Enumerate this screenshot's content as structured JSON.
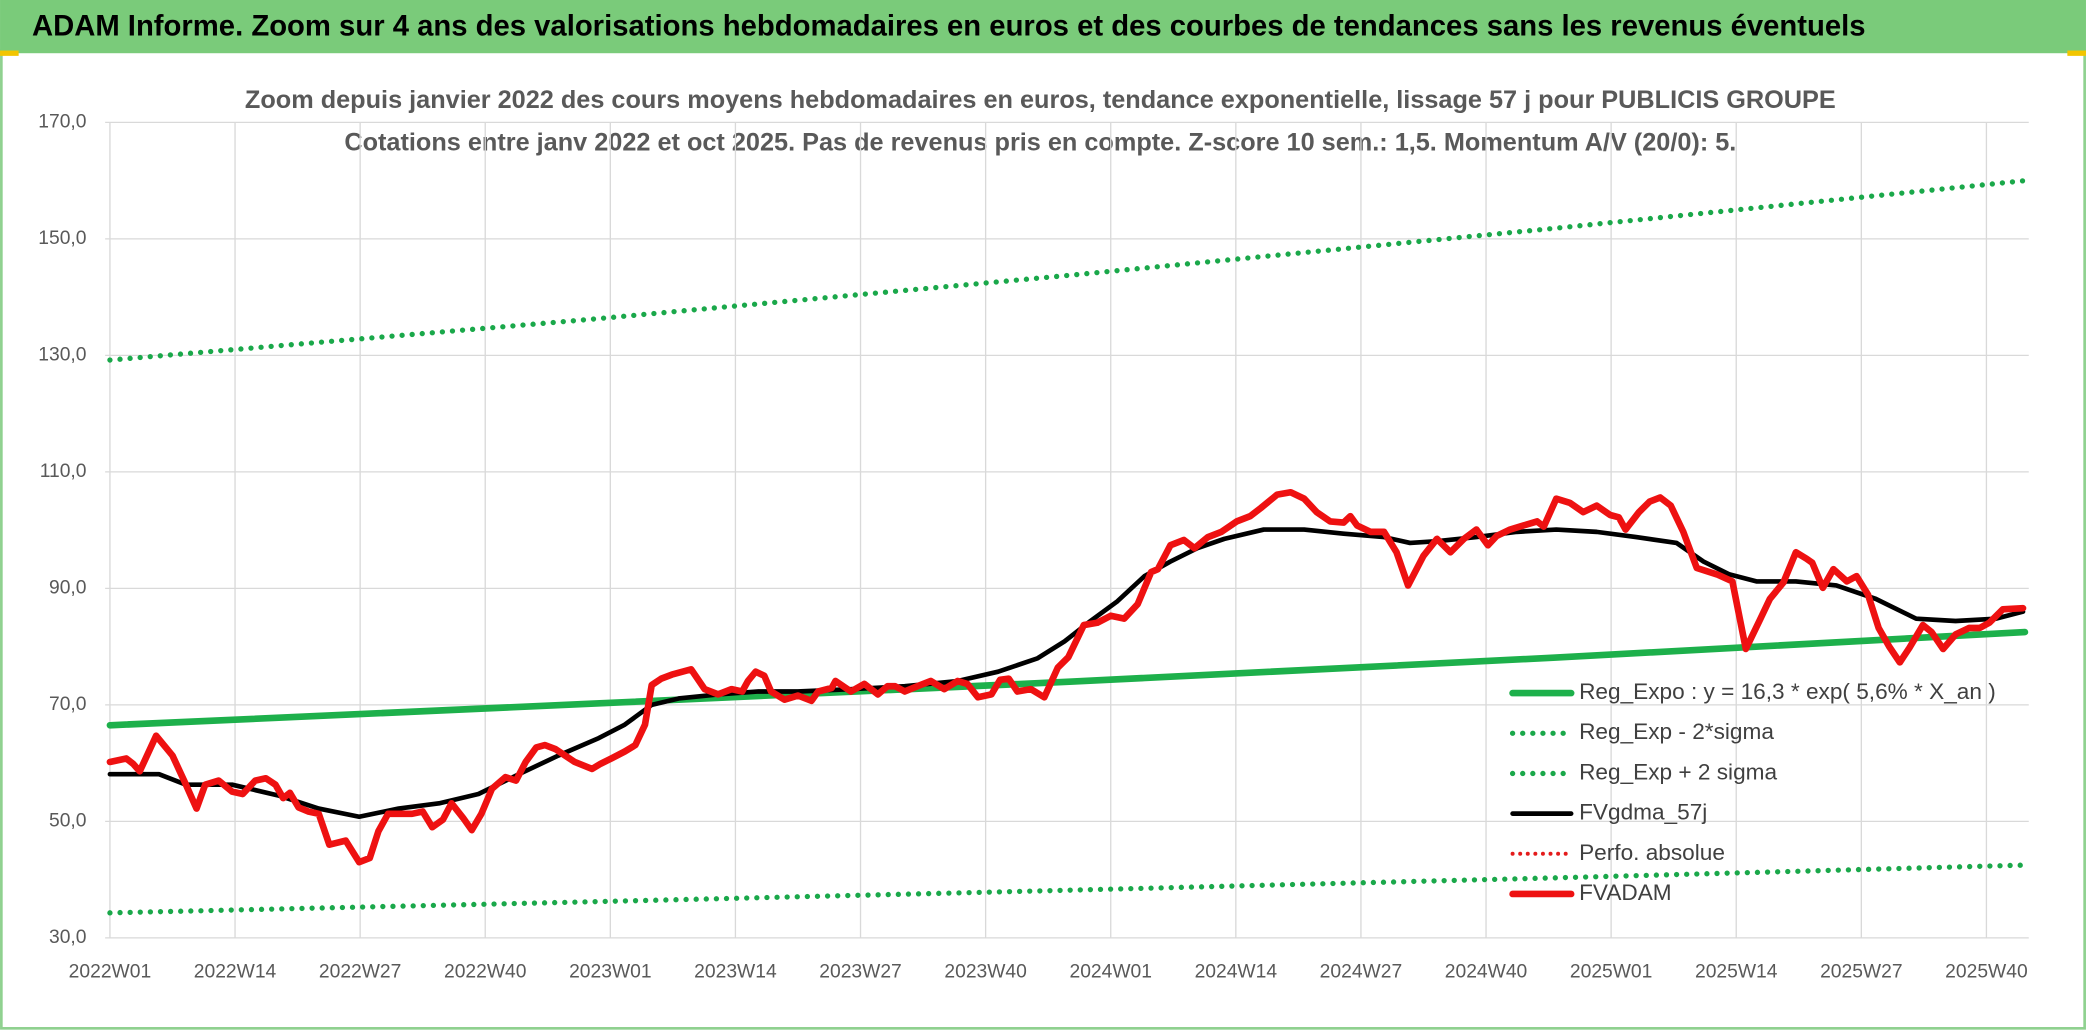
{
  "header": {
    "title": "ADAM Informe. Zoom sur 4 ans des valorisations hebdomadaires en euros et des courbes de tendances sans les revenus éventuels"
  },
  "chart_data": {
    "type": "line",
    "title": "Zoom depuis janvier 2022 des cours moyens hebdomadaires en euros, tendance exponentielle, lissage 57 j pour PUBLICIS GROUPE",
    "subtitle": "Cotations entre janv 2022 et oct 2025. Pas de revenus pris en compte. Z-score 10 sem.: 1,5. Momentum A/V (20/0): 5.",
    "xlim": [
      -0.5,
      199.4
    ],
    "xticks": [
      {
        "value": 0,
        "label": "2022W01"
      },
      {
        "value": 13,
        "label": "2022W14"
      },
      {
        "value": 26,
        "label": "2022W27"
      },
      {
        "value": 39,
        "label": "2022W40"
      },
      {
        "value": 52,
        "label": "2023W01"
      },
      {
        "value": 65,
        "label": "2023W14"
      },
      {
        "value": 78,
        "label": "2023W27"
      },
      {
        "value": 91,
        "label": "2023W40"
      },
      {
        "value": 104,
        "label": "2024W01"
      },
      {
        "value": 117,
        "label": "2024W14"
      },
      {
        "value": 130,
        "label": "2024W27"
      },
      {
        "value": 143,
        "label": "2024W40"
      },
      {
        "value": 156,
        "label": "2025W01"
      },
      {
        "value": 169,
        "label": "2025W14"
      },
      {
        "value": 182,
        "label": "2025W27"
      },
      {
        "value": 195,
        "label": "2025W40"
      }
    ],
    "ylim": [
      30,
      170
    ],
    "yticks": [
      {
        "value": 30,
        "label": "30,0"
      },
      {
        "value": 50,
        "label": "50,0"
      },
      {
        "value": 70,
        "label": "70,0"
      },
      {
        "value": 90,
        "label": "90,0"
      },
      {
        "value": 110,
        "label": "110,0"
      },
      {
        "value": 130,
        "label": "130,0"
      },
      {
        "value": 150,
        "label": "150,0"
      },
      {
        "value": 170,
        "label": "170,0"
      }
    ],
    "grid": true,
    "legend": "bottom-right",
    "series": [
      {
        "name": "Reg_Expo : y = 16,3 * exp( 5,6% *  X_an )",
        "color": "#1db04b",
        "style": "solid",
        "width": 5,
        "x": [
          0,
          50,
          100,
          150,
          199
        ],
        "values": [
          66.5,
          70.2,
          74.0,
          78.1,
          82.5
        ]
      },
      {
        "name": "Reg_Exp - 2*sigma",
        "color": "#1aa84a",
        "style": "dotted",
        "width": 4,
        "x": [
          0,
          50,
          100,
          150,
          199
        ],
        "values": [
          34.3,
          36.2,
          38.2,
          40.3,
          42.5
        ]
      },
      {
        "name": "Reg_Exp + 2 sigma",
        "color": "#1aa84a",
        "style": "dotted",
        "width": 4,
        "x": [
          0,
          50,
          100,
          150,
          199
        ],
        "values": [
          129.2,
          136.2,
          143.8,
          151.8,
          160.0
        ]
      },
      {
        "name": "FVgdma_57j",
        "color": "#000000",
        "style": "solid",
        "width": 3.5,
        "x": [
          0,
          5.1,
          7.9,
          12.7,
          17.6,
          21.7,
          25.9,
          30.0,
          34.2,
          38.3,
          42.5,
          46.6,
          50.8,
          53.5,
          56.3,
          59.1,
          63.2,
          67.4,
          71.5,
          77.0,
          82.6,
          88.1,
          92.3,
          96.4,
          99.2,
          101.9,
          104.7,
          107.5,
          110.2,
          113.0,
          115.8,
          119.9,
          124.1,
          128.2,
          132.4,
          135.1,
          137.9,
          142.0,
          146.2,
          150.3,
          154.5,
          158.6,
          162.8,
          165.6,
          168.3,
          171.1,
          175.2,
          179.4,
          183.5,
          187.7,
          191.8,
          196.0,
          198.8
        ],
        "values": [
          58.1,
          58.1,
          56.3,
          56.3,
          54.4,
          52.2,
          50.8,
          52.2,
          53.1,
          54.7,
          58.1,
          61.3,
          64.3,
          66.6,
          70.0,
          71.1,
          71.8,
          72.3,
          72.3,
          72.7,
          73.2,
          74.1,
          75.7,
          78.0,
          80.9,
          84.4,
          87.8,
          92.1,
          94.6,
          96.9,
          98.5,
          100.1,
          100.1,
          99.4,
          98.8,
          97.8,
          98.1,
          98.8,
          99.7,
          100.1,
          99.7,
          98.8,
          97.8,
          94.6,
          92.4,
          91.2,
          91.2,
          90.5,
          88.2,
          84.8,
          84.4,
          84.8,
          86.0
        ]
      },
      {
        "name": "Perfo. absolue",
        "color": "#e41b1b",
        "style": "dotted",
        "width": 3
      },
      {
        "name": "FVADAM",
        "color": "#ee1111",
        "style": "solid",
        "width": 5,
        "x": [
          0,
          1.7,
          2.4,
          3.1,
          4.8,
          6.5,
          7.9,
          9.0,
          9.9,
          11.3,
          12.7,
          13.8,
          15.1,
          16.2,
          17.2,
          18.0,
          18.7,
          19.6,
          20.6,
          21.7,
          22.8,
          24.5,
          25.9,
          27.0,
          27.9,
          28.9,
          30.3,
          31.4,
          32.5,
          33.5,
          34.6,
          35.5,
          36.7,
          37.6,
          38.6,
          39.7,
          41.1,
          42.2,
          43.2,
          44.3,
          45.2,
          46.3,
          47.3,
          48.3,
          50.1,
          51.0,
          52.1,
          53.5,
          54.6,
          55.6,
          56.3,
          57.3,
          58.4,
          60.4,
          61.8,
          63.2,
          64.6,
          65.7,
          66.3,
          67.1,
          68.0,
          68.7,
          70.1,
          71.5,
          72.9,
          73.6,
          75.0,
          75.4,
          77.0,
          78.4,
          79.8,
          80.8,
          81.6,
          82.6,
          83.9,
          85.3,
          86.7,
          88.1,
          89.1,
          90.2,
          91.6,
          92.5,
          93.4,
          94.3,
          95.7,
          97.1,
          98.5,
          99.6,
          101.2,
          102.6,
          104.0,
          105.4,
          106.8,
          108.2,
          108.9,
          110.2,
          111.6,
          112.7,
          114.1,
          115.5,
          117.1,
          118.5,
          119.6,
          121.3,
          122.7,
          124.1,
          125.4,
          126.8,
          128.2,
          128.9,
          129.6,
          131.0,
          132.4,
          133.7,
          134.9,
          136.5,
          137.9,
          139.3,
          140.7,
          142.0,
          143.2,
          144.1,
          145.5,
          146.9,
          148.3,
          149.0,
          150.3,
          151.7,
          153.1,
          154.5,
          155.9,
          156.8,
          157.5,
          158.9,
          160.0,
          161.1,
          162.2,
          163.5,
          164.9,
          167.0,
          168.6,
          170.0,
          171.4,
          172.5,
          173.9,
          175.2,
          176.3,
          176.9,
          178.0,
          179.1,
          180.5,
          181.5,
          182.7,
          183.8,
          184.9,
          186.0,
          187.0,
          188.4,
          189.3,
          190.5,
          191.8,
          193.2,
          194.3,
          195.3,
          196.7,
          198.8
        ],
        "values": [
          60.2,
          60.8,
          59.9,
          58.6,
          64.7,
          61.3,
          56.3,
          52.2,
          56.3,
          57.0,
          55.1,
          54.7,
          57.0,
          57.4,
          56.3,
          54.0,
          54.9,
          52.4,
          51.7,
          51.3,
          46.0,
          46.7,
          43.0,
          43.7,
          48.3,
          51.3,
          51.3,
          51.3,
          51.7,
          49.0,
          50.3,
          53.1,
          50.6,
          48.5,
          51.3,
          55.6,
          57.6,
          57.0,
          60.2,
          62.7,
          63.1,
          62.4,
          61.3,
          60.2,
          59.0,
          59.9,
          60.8,
          62.0,
          63.1,
          66.6,
          73.4,
          74.5,
          75.2,
          76.1,
          72.7,
          71.8,
          72.7,
          72.3,
          74.1,
          75.7,
          75.0,
          72.3,
          70.9,
          71.6,
          70.7,
          72.3,
          72.9,
          74.1,
          72.3,
          73.6,
          71.8,
          73.2,
          73.2,
          72.3,
          73.2,
          74.1,
          72.7,
          74.1,
          73.6,
          71.3,
          71.8,
          74.3,
          74.5,
          72.3,
          72.7,
          71.3,
          76.4,
          78.2,
          83.7,
          84.1,
          85.3,
          84.8,
          87.3,
          92.8,
          93.3,
          97.4,
          98.3,
          96.9,
          98.8,
          99.7,
          101.5,
          102.4,
          103.8,
          106.1,
          106.5,
          105.4,
          103.1,
          101.5,
          101.3,
          102.4,
          100.8,
          99.7,
          99.7,
          96.2,
          90.5,
          95.6,
          98.5,
          96.2,
          98.5,
          100.1,
          97.4,
          99.0,
          100.1,
          100.8,
          101.5,
          100.6,
          105.4,
          104.7,
          103.1,
          104.2,
          102.6,
          102.2,
          100.1,
          103.1,
          104.9,
          105.6,
          104.2,
          99.7,
          93.5,
          92.4,
          91.2,
          79.6,
          84.4,
          88.2,
          91.0,
          96.2,
          95.1,
          94.4,
          90.1,
          93.3,
          91.2,
          92.1,
          88.9,
          83.2,
          80.0,
          77.3,
          79.8,
          83.7,
          82.5,
          79.6,
          82.1,
          83.2,
          83.2,
          84.1,
          86.4,
          86.6
        ]
      }
    ]
  }
}
